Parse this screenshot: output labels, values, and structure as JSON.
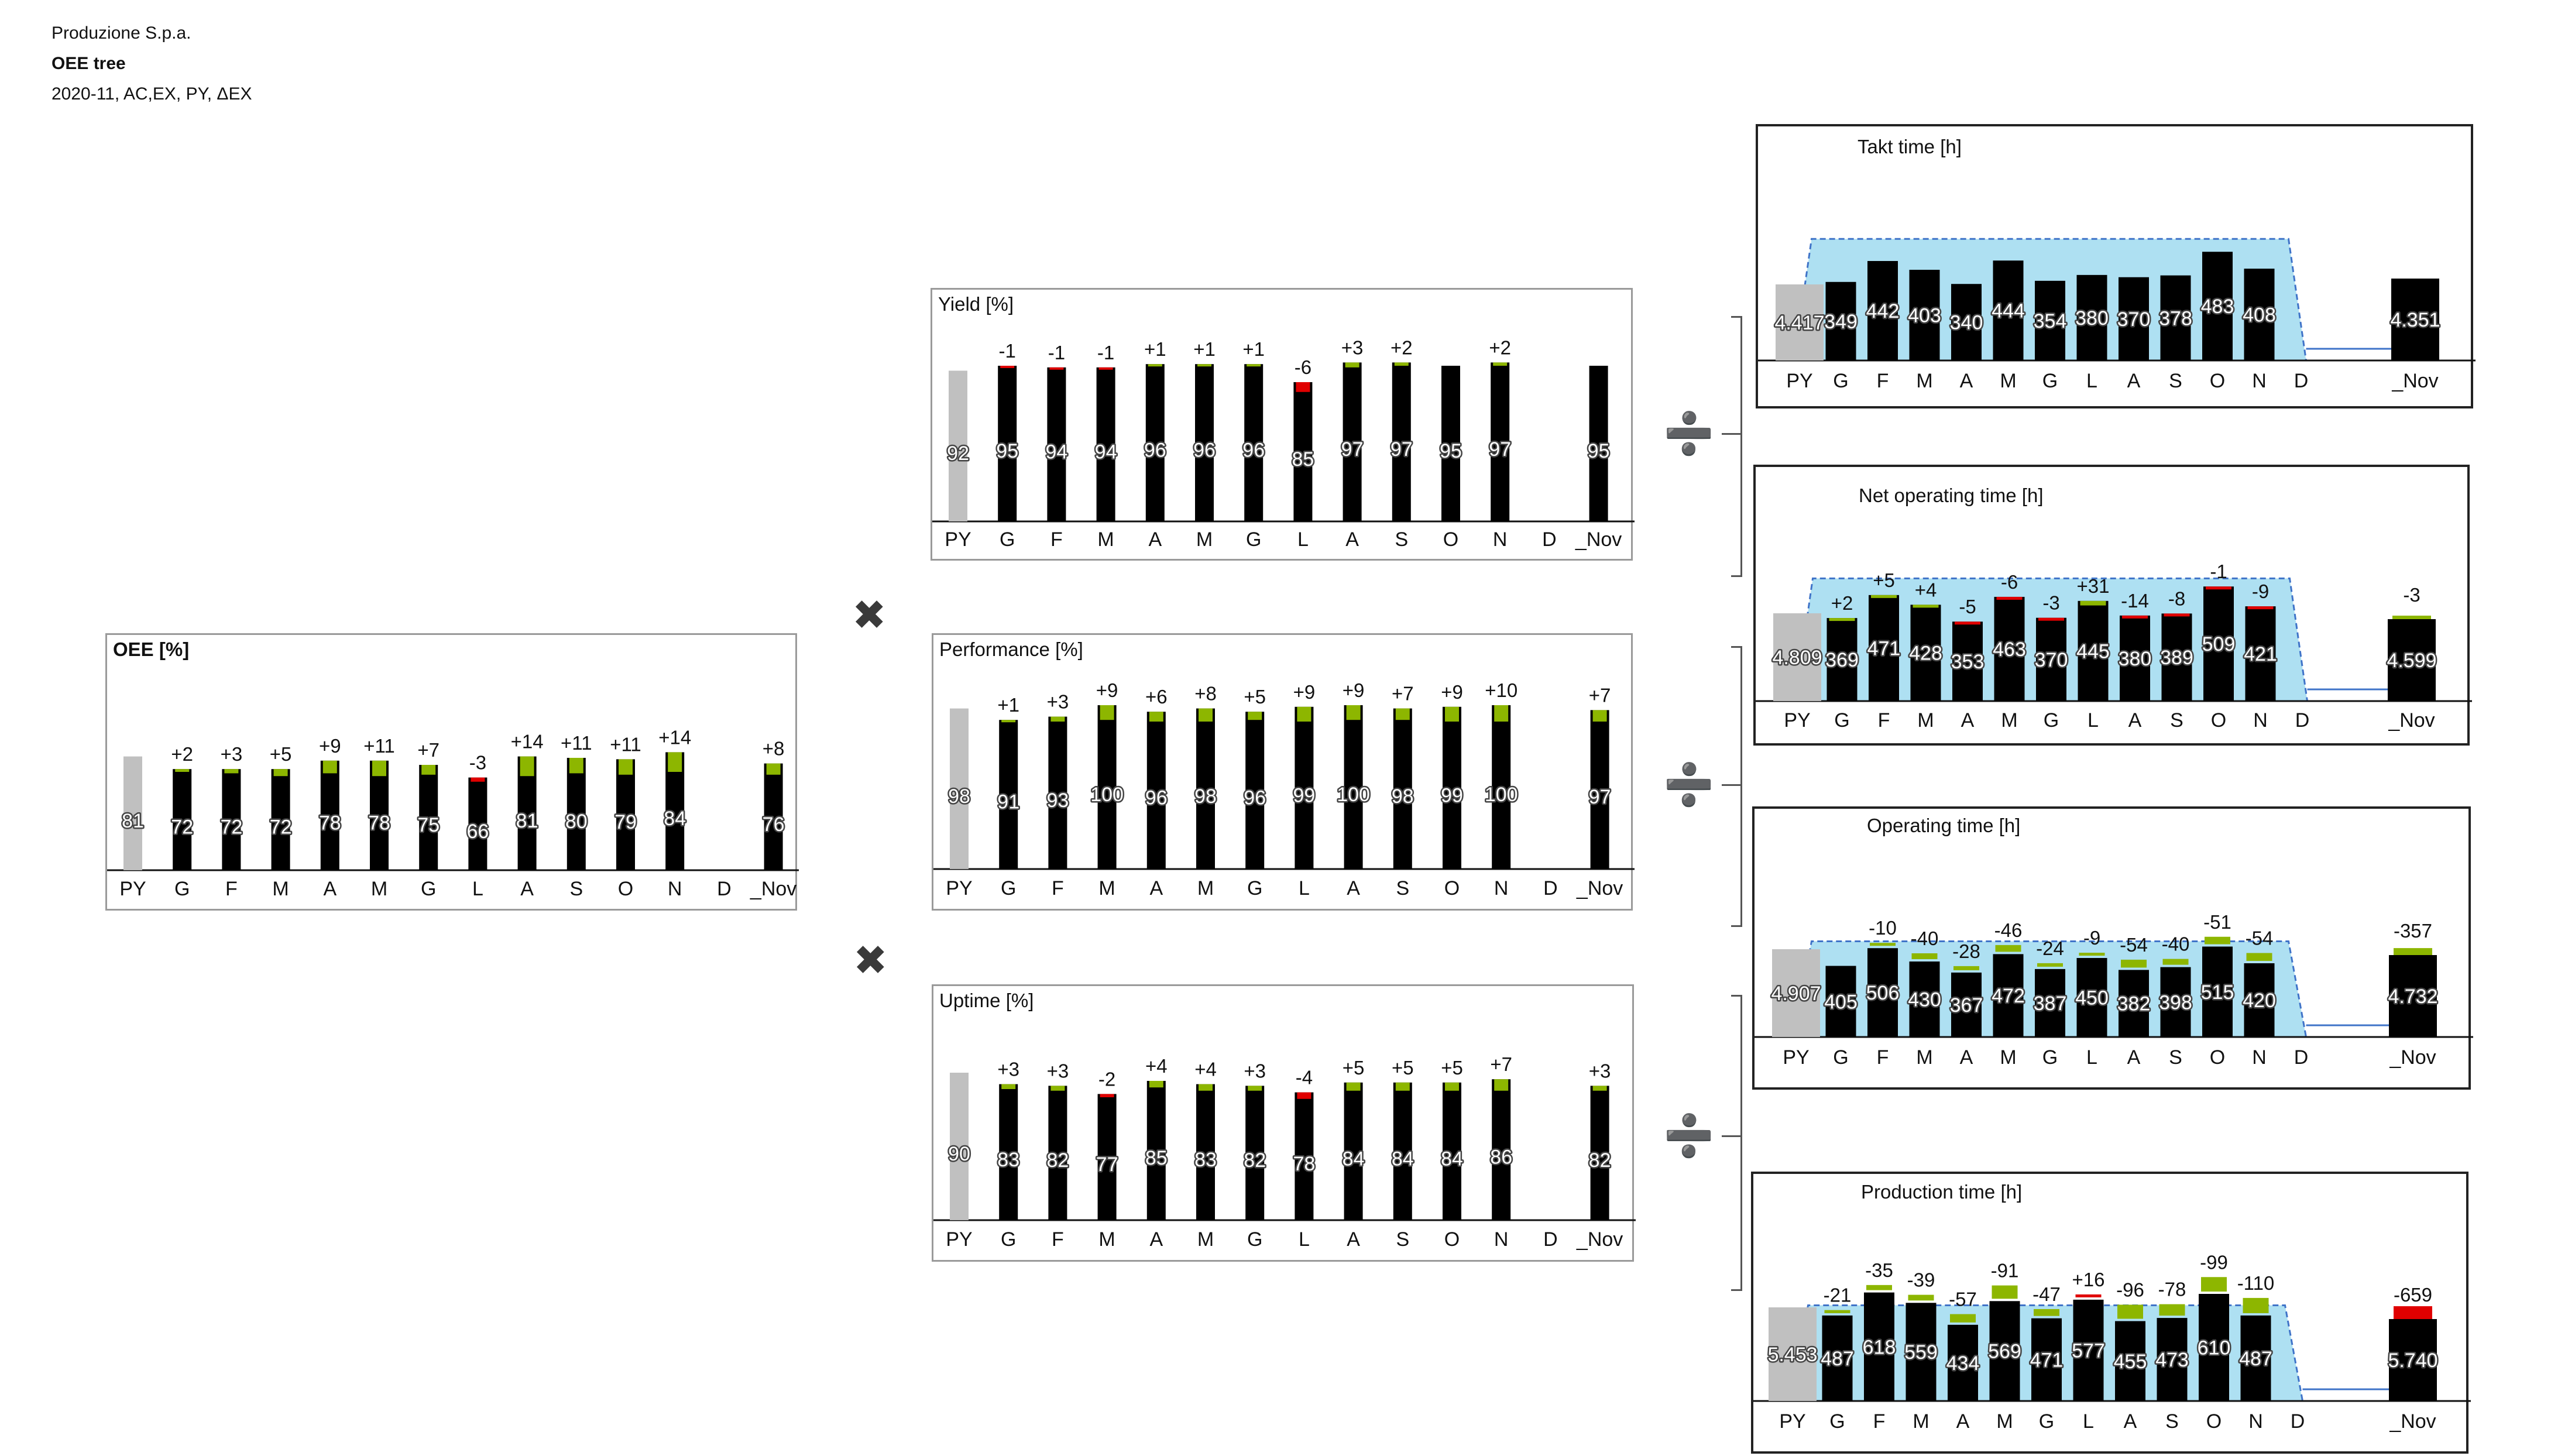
{
  "header": {
    "company": "Produzione S.p.a.",
    "title": "OEE tree",
    "subtitle": "2020-11, AC,EX, PY, ΔEX"
  },
  "operators": {
    "multiply": "✖",
    "divide": "➗"
  },
  "colors": {
    "ac": "#000000",
    "py": "#c0c0c0",
    "positive": "#8db600",
    "negative": "#e00000",
    "band": "#aee0f2",
    "band_edge": "#3f73c8"
  },
  "chart_data": [
    {
      "id": "oee",
      "type": "bar",
      "title": "OEE [%]",
      "ylim": [
        0,
        100
      ],
      "categories": [
        "PY",
        "G",
        "F",
        "M",
        "A",
        "M",
        "G",
        "L",
        "A",
        "S",
        "O",
        "N",
        "D",
        "_Nov"
      ],
      "values": [
        81,
        72,
        72,
        72,
        78,
        78,
        75,
        66,
        81,
        80,
        79,
        84,
        null,
        76
      ],
      "deltas": [
        null,
        2,
        3,
        5,
        9,
        11,
        7,
        -3,
        14,
        11,
        11,
        14,
        null,
        8
      ],
      "delta_labels": [
        "",
        "+2",
        "+3",
        "+5",
        "+9",
        "+11",
        "+7",
        "-3",
        "+14",
        "+11",
        "+11",
        "+14",
        "",
        "+8"
      ]
    },
    {
      "id": "yield",
      "type": "bar",
      "title": "Yield [%]",
      "ylim": [
        0,
        100
      ],
      "categories": [
        "PY",
        "G",
        "F",
        "M",
        "A",
        "M",
        "G",
        "L",
        "A",
        "S",
        "O",
        "N",
        "D",
        "_Nov"
      ],
      "values": [
        92,
        95,
        94,
        94,
        96,
        96,
        96,
        85,
        97,
        97,
        95,
        97,
        null,
        95
      ],
      "deltas": [
        null,
        -1,
        -1,
        -1,
        1,
        1,
        1,
        -6,
        3,
        2,
        0,
        2,
        null,
        0
      ],
      "delta_labels": [
        "",
        "-1",
        "-1",
        "-1",
        "+1",
        "+1",
        "+1",
        "-6",
        "+3",
        "+2",
        "",
        "+2",
        "",
        ""
      ]
    },
    {
      "id": "performance",
      "type": "bar",
      "title": "Performance [%]",
      "ylim": [
        0,
        100
      ],
      "categories": [
        "PY",
        "G",
        "F",
        "M",
        "A",
        "M",
        "G",
        "L",
        "A",
        "S",
        "O",
        "N",
        "D",
        "_Nov"
      ],
      "values": [
        98,
        91,
        93,
        100,
        96,
        98,
        96,
        99,
        100,
        98,
        99,
        100,
        null,
        97
      ],
      "deltas": [
        null,
        1,
        3,
        9,
        6,
        8,
        5,
        9,
        9,
        7,
        9,
        10,
        null,
        7
      ],
      "delta_labels": [
        "",
        "+1",
        "+3",
        "+9",
        "+6",
        "+8",
        "+5",
        "+9",
        "+9",
        "+7",
        "+9",
        "+10",
        "",
        "+7"
      ]
    },
    {
      "id": "uptime",
      "type": "bar",
      "title": "Uptime [%]",
      "ylim": [
        0,
        100
      ],
      "categories": [
        "PY",
        "G",
        "F",
        "M",
        "A",
        "M",
        "G",
        "L",
        "A",
        "S",
        "O",
        "N",
        "D",
        "_Nov"
      ],
      "values": [
        90,
        83,
        82,
        77,
        85,
        83,
        82,
        78,
        84,
        84,
        84,
        86,
        null,
        82
      ],
      "deltas": [
        null,
        3,
        3,
        -2,
        4,
        4,
        3,
        -4,
        5,
        5,
        5,
        7,
        null,
        3
      ],
      "delta_labels": [
        "",
        "+3",
        "+3",
        "-2",
        "+4",
        "+4",
        "+3",
        "-4",
        "+5",
        "+5",
        "+5",
        "+7",
        "",
        "+3"
      ]
    },
    {
      "id": "takt",
      "type": "bar",
      "title": "Takt time  [h]",
      "ylim": [
        0,
        650
      ],
      "categories": [
        "PY",
        "G",
        "F",
        "M",
        "A",
        "M",
        "G",
        "L",
        "A",
        "S",
        "O",
        "N",
        "D",
        "_Nov"
      ],
      "values": [
        null,
        349,
        442,
        403,
        340,
        444,
        354,
        380,
        370,
        378,
        483,
        408,
        null,
        null
      ],
      "labels": [
        "4.417",
        "349",
        "442",
        "403",
        "340",
        "444",
        "354",
        "380",
        "370",
        "378",
        "483",
        "408",
        "",
        "4.351"
      ],
      "deltas": [
        null,
        0,
        0,
        0,
        0,
        0,
        0,
        0,
        0,
        0,
        0,
        0,
        null,
        0
      ],
      "delta_labels": [
        "",
        "",
        "",
        "",
        "",
        "",
        "",
        "",
        "",
        "",
        "",
        "",
        "",
        ""
      ],
      "band": 540
    },
    {
      "id": "net_operating",
      "type": "bar",
      "title": "Net operating time [h]",
      "ylim": [
        0,
        650
      ],
      "categories": [
        "PY",
        "G",
        "F",
        "M",
        "A",
        "M",
        "G",
        "L",
        "A",
        "S",
        "O",
        "N",
        "D",
        "_Nov"
      ],
      "values": [
        null,
        369,
        471,
        428,
        353,
        463,
        370,
        445,
        380,
        389,
        509,
        421,
        null,
        null
      ],
      "labels": [
        "4.809",
        "369",
        "471",
        "428",
        "353",
        "463",
        "370",
        "445",
        "380",
        "389",
        "509",
        "421",
        "",
        "4.599"
      ],
      "deltas": [
        null,
        2,
        5,
        4,
        -5,
        -6,
        -3,
        31,
        -14,
        -8,
        -1,
        -9,
        null,
        -3
      ],
      "delta_labels": [
        "",
        "+2",
        "+5",
        "+4",
        "-5",
        "-6",
        "-3",
        "+31",
        "-14",
        "-8",
        "-1",
        "-9",
        "",
        "-3"
      ],
      "band": 545
    },
    {
      "id": "operating",
      "type": "bar",
      "title": "Operating time [h]",
      "ylim": [
        0,
        700
      ],
      "categories": [
        "PY",
        "G",
        "F",
        "M",
        "A",
        "M",
        "G",
        "L",
        "A",
        "S",
        "O",
        "N",
        "D",
        "_Nov"
      ],
      "values": [
        null,
        405,
        506,
        430,
        367,
        472,
        387,
        450,
        382,
        398,
        515,
        420,
        null,
        null
      ],
      "labels": [
        "4.907",
        "405",
        "506",
        "430",
        "367",
        "472",
        "387",
        "450",
        "382",
        "398",
        "515",
        "420",
        "",
        "4.732"
      ],
      "deltas": [
        null,
        0,
        -10,
        -40,
        -28,
        -46,
        -24,
        -9,
        -54,
        -40,
        -51,
        -54,
        null,
        -357
      ],
      "delta_labels": [
        "",
        "",
        "-10",
        "-40",
        "-28",
        "-46",
        "-24",
        "-9",
        "-54",
        "-40",
        "-51",
        "-54",
        "",
        "-357"
      ],
      "band": 545
    },
    {
      "id": "production",
      "type": "bar",
      "title": "Production time [h]",
      "ylim": [
        0,
        800
      ],
      "categories": [
        "PY",
        "G",
        "F",
        "M",
        "A",
        "M",
        "G",
        "L",
        "A",
        "S",
        "O",
        "N",
        "D",
        "_Nov"
      ],
      "values": [
        null,
        487,
        618,
        559,
        434,
        569,
        471,
        577,
        455,
        473,
        610,
        487,
        null,
        null
      ],
      "labels": [
        "5.453",
        "487",
        "618",
        "559",
        "434",
        "569",
        "471",
        "577",
        "455",
        "473",
        "610",
        "487",
        "",
        "5.740"
      ],
      "deltas": [
        null,
        -21,
        -35,
        -39,
        -57,
        -91,
        -47,
        16,
        -96,
        -78,
        -99,
        -110,
        null,
        -659
      ],
      "delta_labels": [
        "",
        "-21",
        "-35",
        "-39",
        "-57",
        "-91",
        "-47",
        "+16",
        "-96",
        "-78",
        "-99",
        "-110",
        "",
        "-659"
      ],
      "band": 545
    }
  ]
}
